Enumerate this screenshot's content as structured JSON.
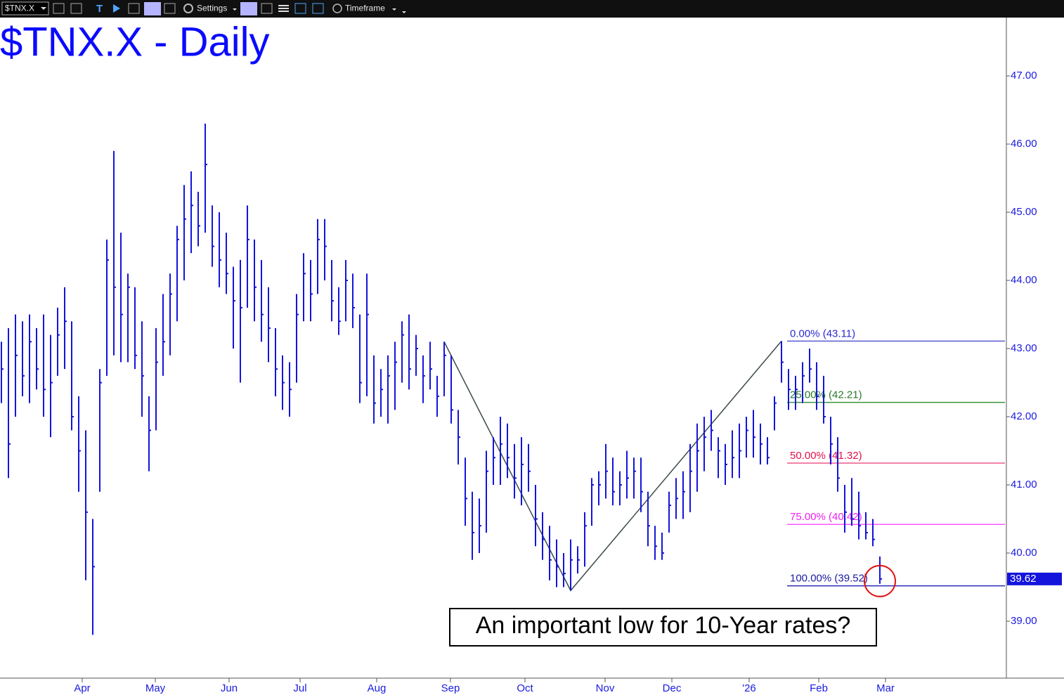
{
  "toolbar": {
    "symbol": "$TNX.X",
    "settings": "Settings",
    "timeframe": "Timeframe"
  },
  "chart_data": {
    "type": "ohlc",
    "title": "$TNX.X - Daily",
    "color": "#1414dc",
    "annotation": "An important low for 10-Year rates?",
    "high": [
      43.1,
      43.3,
      43.5,
      43.4,
      43.5,
      43.3,
      43.5,
      43.2,
      43.6,
      43.9,
      43.4,
      42.3,
      41.8,
      40.5,
      42.7,
      44.6,
      45.9,
      44.7,
      44.1,
      43.9,
      43.4,
      42.3,
      43.3,
      43.8,
      44.1,
      44.8,
      45.4,
      45.6,
      45.3,
      46.3,
      45.1,
      45.0,
      44.7,
      44.2,
      44.3,
      45.1,
      44.6,
      44.3,
      43.9,
      43.3,
      42.9,
      42.8,
      43.8,
      44.4,
      44.3,
      44.9,
      44.9,
      44.3,
      43.9,
      44.3,
      44.1,
      43.5,
      44.1,
      42.9,
      42.7,
      42.9,
      43.1,
      43.4,
      43.5,
      43.2,
      42.9,
      43.1,
      42.6,
      43.1,
      42.9,
      42.1,
      41.4,
      40.9,
      40.8,
      41.5,
      41.7,
      42.0,
      41.9,
      41.6,
      41.7,
      41.6,
      41.0,
      40.6,
      40.4,
      40.2,
      40.0,
      40.2,
      40.1,
      40.6,
      41.1,
      41.2,
      41.6,
      41.4,
      41.2,
      41.5,
      41.4,
      41.4,
      40.9,
      40.4,
      40.3,
      40.9,
      41.1,
      41.2,
      41.6,
      41.9,
      42.0,
      42.1,
      41.7,
      41.6,
      41.8,
      41.9,
      42.0,
      42.1,
      41.9,
      41.7,
      42.3,
      43.11,
      42.7,
      42.6,
      42.8,
      43.0,
      42.8,
      42.6,
      42.0,
      41.7,
      41.0,
      41.1,
      40.9,
      40.6,
      40.5,
      39.95
    ],
    "low": [
      42.2,
      41.1,
      42.0,
      42.3,
      42.2,
      42.4,
      42.0,
      41.7,
      42.6,
      42.7,
      41.8,
      40.9,
      39.6,
      38.8,
      40.9,
      42.6,
      42.9,
      42.8,
      42.8,
      42.7,
      42.0,
      41.2,
      41.8,
      42.6,
      42.9,
      43.4,
      44.0,
      44.4,
      44.5,
      44.7,
      44.2,
      43.9,
      43.8,
      43.0,
      42.5,
      43.6,
      43.4,
      43.1,
      42.8,
      42.3,
      42.1,
      42.0,
      42.5,
      43.4,
      43.4,
      43.8,
      44.0,
      43.4,
      43.2,
      43.4,
      43.3,
      42.2,
      42.3,
      41.9,
      42.0,
      41.9,
      42.1,
      42.5,
      42.4,
      42.6,
      42.2,
      42.4,
      42.0,
      42.3,
      41.9,
      41.3,
      40.4,
      39.9,
      40.0,
      40.3,
      41.0,
      41.0,
      41.1,
      40.8,
      40.7,
      40.9,
      40.1,
      39.9,
      39.6,
      39.5,
      39.5,
      39.45,
      39.7,
      39.8,
      40.4,
      40.7,
      40.8,
      40.7,
      40.7,
      40.8,
      40.8,
      40.6,
      40.1,
      39.9,
      39.9,
      40.3,
      40.5,
      40.5,
      40.6,
      40.9,
      41.2,
      41.5,
      41.1,
      41.0,
      41.1,
      41.1,
      41.4,
      41.4,
      41.3,
      41.3,
      41.8,
      42.5,
      42.1,
      42.1,
      42.2,
      42.5,
      42.1,
      41.9,
      41.3,
      40.9,
      40.3,
      40.4,
      40.2,
      40.2,
      40.1,
      39.55
    ],
    "close": [
      42.7,
      41.6,
      42.9,
      42.6,
      43.1,
      42.7,
      42.4,
      42.5,
      43.2,
      43.4,
      42.0,
      41.5,
      40.6,
      39.8,
      42.5,
      44.3,
      43.9,
      43.5,
      43.9,
      42.9,
      42.6,
      41.8,
      42.8,
      43.1,
      43.8,
      44.6,
      44.9,
      45.1,
      44.8,
      45.7,
      44.5,
      44.3,
      44.1,
      43.7,
      43.6,
      44.6,
      43.9,
      43.5,
      43.3,
      42.7,
      42.5,
      42.4,
      43.5,
      44.1,
      43.8,
      44.6,
      44.5,
      43.7,
      43.4,
      44.0,
      43.6,
      42.5,
      43.5,
      42.2,
      42.4,
      42.6,
      42.8,
      43.2,
      42.7,
      43.0,
      42.6,
      42.7,
      42.3,
      42.9,
      42.1,
      41.7,
      40.8,
      40.3,
      40.4,
      41.2,
      41.4,
      41.6,
      41.4,
      41.1,
      41.3,
      41.2,
      40.5,
      40.2,
      39.9,
      39.8,
      39.7,
      39.9,
      39.9,
      40.4,
      41.0,
      41.0,
      41.2,
      40.9,
      41.0,
      41.1,
      41.2,
      40.9,
      40.4,
      40.1,
      40.0,
      40.7,
      40.8,
      40.9,
      41.2,
      41.5,
      41.7,
      41.8,
      41.5,
      41.3,
      41.4,
      41.5,
      41.8,
      41.7,
      41.6,
      41.4,
      42.2,
      42.8,
      42.4,
      42.4,
      42.6,
      42.7,
      42.3,
      42.0,
      41.6,
      41.1,
      40.6,
      40.5,
      40.4,
      40.3,
      40.2,
      39.62
    ],
    "xlim": [
      -0.2,
      142.8
    ],
    "xticks": [
      {
        "value": 11.5,
        "label": "Apr"
      },
      {
        "value": 21.9,
        "label": "May"
      },
      {
        "value": 32.4,
        "label": "Jun"
      },
      {
        "value": 42.5,
        "label": "Jul"
      },
      {
        "value": 53.4,
        "label": "Aug"
      },
      {
        "value": 63.9,
        "label": "Sep"
      },
      {
        "value": 74.5,
        "label": "Oct"
      },
      {
        "value": 85.9,
        "label": "Nov"
      },
      {
        "value": 95.4,
        "label": "Dec"
      },
      {
        "value": 106.4,
        "label": "'26"
      },
      {
        "value": 116.3,
        "label": "Feb"
      },
      {
        "value": 125.8,
        "label": "Mar"
      }
    ],
    "ylim": [
      38.165,
      47.856
    ],
    "yticks": [
      {
        "value": 39,
        "label": "39.00"
      },
      {
        "value": 40,
        "label": "40.00"
      },
      {
        "value": 41,
        "label": "41.00"
      },
      {
        "value": 42,
        "label": "42.00"
      },
      {
        "value": 43,
        "label": "43.00"
      },
      {
        "value": 44,
        "label": "44.00"
      },
      {
        "value": 45,
        "label": "45.00"
      },
      {
        "value": 46,
        "label": "46.00"
      },
      {
        "value": 47,
        "label": "47.00"
      }
    ],
    "fib_levels": [
      {
        "label": "0.00% (43.11)",
        "value": 43.11,
        "color": "#5a5ad0",
        "text_color": "#2a2ad0"
      },
      {
        "label": "25.00% (42.21)",
        "value": 42.21,
        "color": "#3c963c",
        "text_color": "#2a7a2a"
      },
      {
        "label": "50.00% (41.32)",
        "value": 41.32,
        "color": "#ee5a8a",
        "text_color": "#e0104a"
      },
      {
        "label": "75.00% (40.42)",
        "value": 40.42,
        "color": "#ff55ff",
        "text_color": "#ee22ee"
      },
      {
        "label": "100.00% (39.52)",
        "value": 39.52,
        "color": "#2a2ab8",
        "text_color": "#1a1aa0"
      }
    ]
  }
}
